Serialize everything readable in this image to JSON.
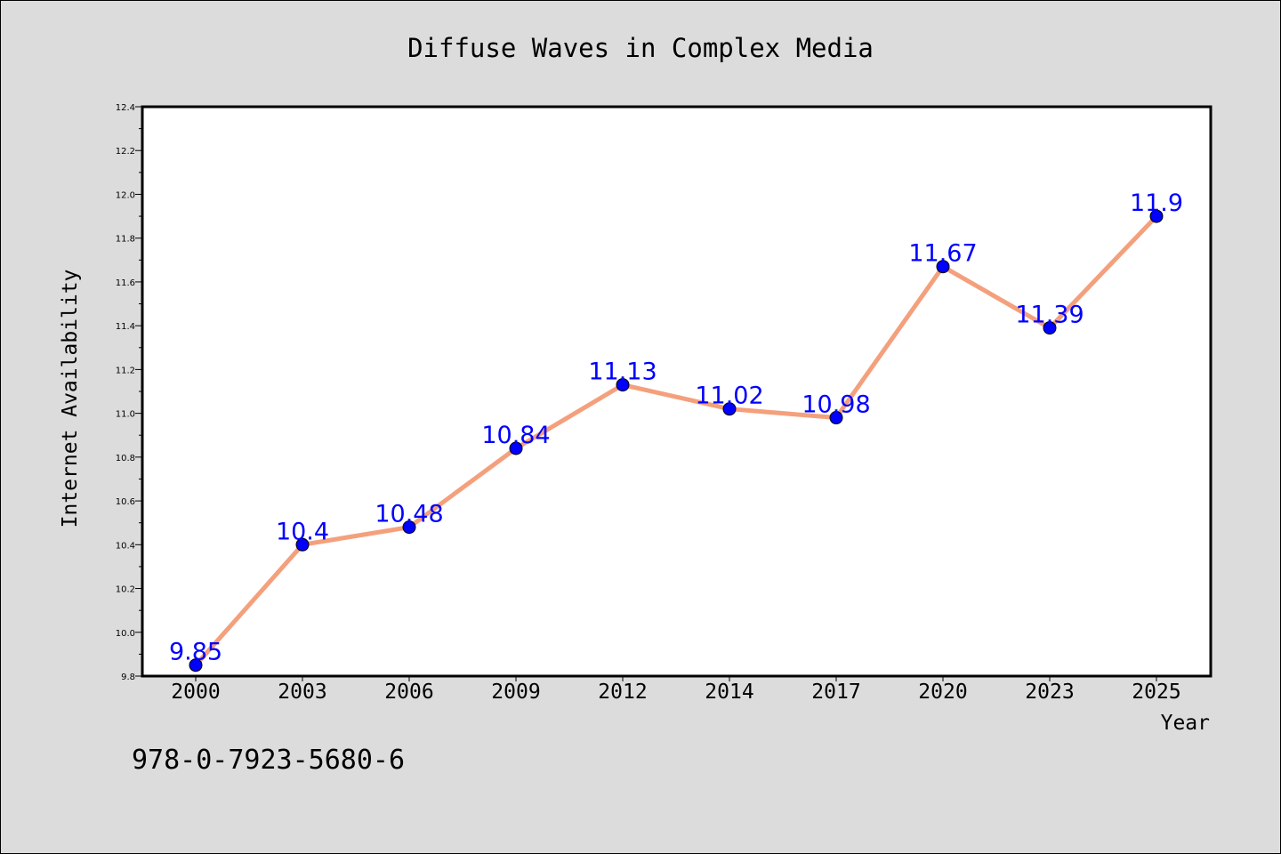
{
  "chart_data": {
    "type": "line",
    "title": "Diffuse Waves in Complex Media",
    "xlabel": "Year",
    "ylabel": "Internet Availability",
    "categories": [
      "2000",
      "2003",
      "2006",
      "2009",
      "2012",
      "2014",
      "2017",
      "2020",
      "2023",
      "2025"
    ],
    "values": [
      9.85,
      10.4,
      10.48,
      10.84,
      11.13,
      11.02,
      10.98,
      11.67,
      11.39,
      11.9
    ],
    "data_labels": [
      "9.85",
      "10.4",
      "10.48",
      "10.84",
      "11.13",
      "11.02",
      "10.98",
      "11.67",
      "11.39",
      "11.9"
    ],
    "ylim": [
      9.8,
      12.4
    ],
    "yticks": [
      "9.8",
      "10.0",
      "10.2",
      "10.4",
      "10.6",
      "10.8",
      "11.0",
      "11.2",
      "11.4",
      "11.6",
      "11.8",
      "12.0",
      "12.2",
      "12.4"
    ],
    "grid": false,
    "legend": "none",
    "line_color": "#f4a07c",
    "marker_color": "#0000ff",
    "label_color": "#0000ff"
  },
  "footer": {
    "isbn": "978-0-7923-5680-6"
  }
}
